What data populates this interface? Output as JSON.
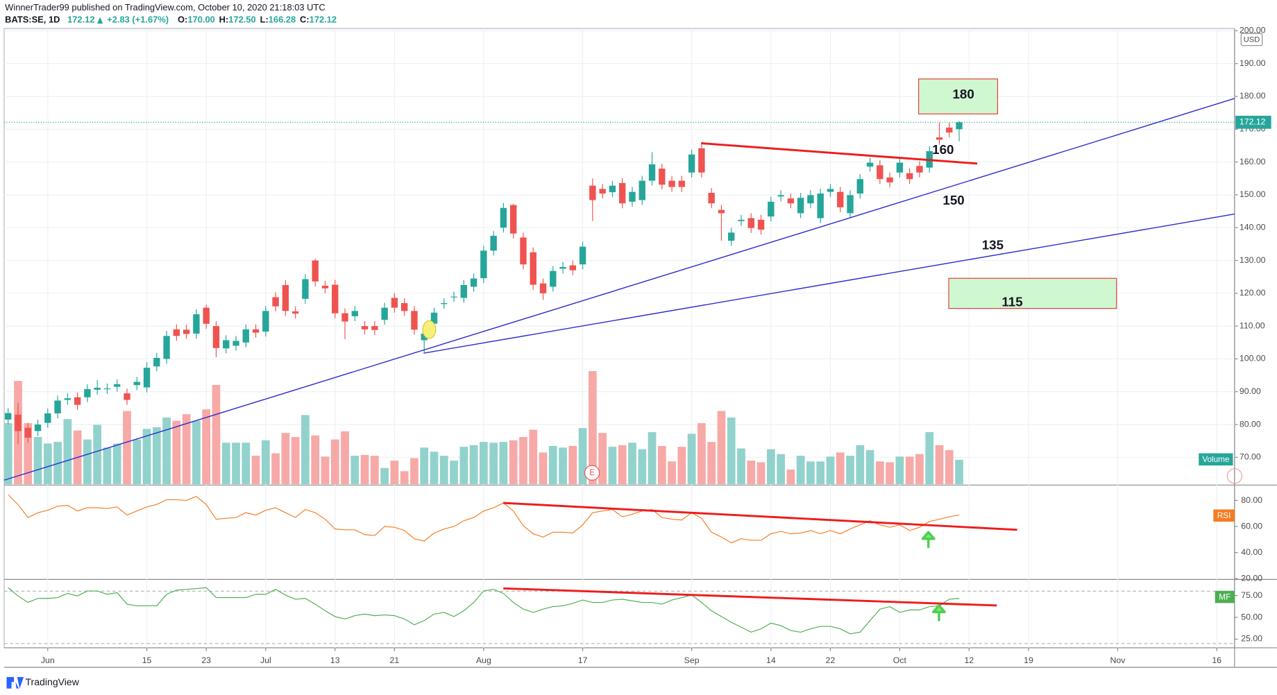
{
  "header": {
    "publisher": "WinnerTrader99 published on TradingView.com, October 10, 2020 21:18:03 UTC",
    "symbol": "BATS:SE, 1D",
    "change": "+2.83 (+1.67%)",
    "ohlc": [
      {
        "label": "O:",
        "value": "170.00"
      },
      {
        "label": "H:",
        "value": "172.50"
      },
      {
        "label": "L:",
        "value": "166.28"
      },
      {
        "label": "C:",
        "value": "172.12"
      }
    ],
    "currency": "USD",
    "footer": "TradingView"
  },
  "chart_data": {
    "type": "candlestick",
    "xlim": [
      -0.4,
      123.8
    ],
    "xticks": [
      {
        "value": 4,
        "label": "Jun"
      },
      {
        "value": 14,
        "label": "15"
      },
      {
        "value": 20,
        "label": "23"
      },
      {
        "value": 26,
        "label": "Jul"
      },
      {
        "value": 33,
        "label": "13"
      },
      {
        "value": 39,
        "label": "21"
      },
      {
        "value": 48,
        "label": "Aug"
      },
      {
        "value": 58,
        "label": "17"
      },
      {
        "value": 69,
        "label": "Sep"
      },
      {
        "value": 77,
        "label": "14"
      },
      {
        "value": 83,
        "label": "22"
      },
      {
        "value": 90,
        "label": "Oct"
      },
      {
        "value": 97,
        "label": "12"
      },
      {
        "value": 103,
        "label": "19"
      },
      {
        "value": 112,
        "label": "Nov"
      },
      {
        "value": 122,
        "label": "16"
      }
    ],
    "ylim": [
      61.8,
      200.7
    ],
    "yticks": [
      {
        "value": 200,
        "label": "200.00"
      },
      {
        "value": 190,
        "label": "190.00"
      },
      {
        "value": 180,
        "label": "180.00"
      },
      {
        "value": 170,
        "label": "170.00"
      },
      {
        "value": 160,
        "label": "160.00"
      },
      {
        "value": 150,
        "label": "150.00"
      },
      {
        "value": 140,
        "label": "140.00"
      },
      {
        "value": 130,
        "label": "130.00"
      },
      {
        "value": 120,
        "label": "120.00"
      },
      {
        "value": 110,
        "label": "110.00"
      },
      {
        "value": 100,
        "label": "100.00"
      },
      {
        "value": 90,
        "label": "90.00"
      },
      {
        "value": 80,
        "label": "80.00"
      },
      {
        "value": 70,
        "label": "70.00"
      }
    ],
    "grid": true,
    "up_color": "#26a69a",
    "down_color": "#ef5350",
    "open": [
      81.5,
      83,
      79,
      78,
      80.5,
      83.4,
      87.5,
      88.3,
      88.3,
      90.6,
      90.8,
      91.5,
      89.5,
      92,
      91.3,
      97.7,
      100,
      109,
      108.9,
      107.7,
      115.6,
      110,
      103.2,
      104,
      105,
      109,
      108.3,
      118.8,
      122.5,
      114.5,
      118.3,
      130,
      122.3,
      122.6,
      113.9,
      113,
      110,
      110,
      111.9,
      118.6,
      117,
      114.6,
      105.7,
      110.7,
      116.7,
      118.8,
      118.6,
      122,
      124.6,
      133,
      140,
      146.9,
      137,
      132.5,
      123,
      122,
      127.5,
      128.5,
      128.8,
      152.8,
      151.8,
      150.8,
      153.6,
      147.9,
      148.4,
      154.3,
      158,
      154.3,
      154.3,
      156.8,
      164.2,
      150.6,
      145.4,
      136,
      142,
      142.9,
      142.4,
      143.4,
      149.5,
      148.9,
      144.4,
      147.4,
      142.9,
      150.9,
      150.9,
      144.4,
      150.4,
      158.6,
      159,
      155.3,
      156.8,
      156.6,
      158.8,
      158.3,
      167.5,
      170.5,
      170
    ],
    "high": [
      85,
      86.6,
      80.5,
      81.5,
      84.9,
      88.8,
      89.5,
      89.8,
      92.3,
      93.5,
      92.5,
      93.8,
      91,
      94.5,
      99,
      101.8,
      108.5,
      110.5,
      110.4,
      115.1,
      116.5,
      111.5,
      107.2,
      107,
      110.5,
      110.5,
      116.1,
      120.3,
      124,
      116,
      125.8,
      130.5,
      123.8,
      124.1,
      115.4,
      116.1,
      111.5,
      111.5,
      117.1,
      120.1,
      118.5,
      116.1,
      109.2,
      115.6,
      118.5,
      120.5,
      124,
      126,
      134.5,
      139,
      147.5,
      147.3,
      138.5,
      134,
      124.5,
      128.3,
      129.5,
      130,
      135.7,
      155,
      153.3,
      154.3,
      155.1,
      152.4,
      155.8,
      163,
      159.5,
      155.8,
      155.8,
      163.8,
      166,
      152.1,
      146.9,
      140,
      143.9,
      144.4,
      143.9,
      149.4,
      151.4,
      150.4,
      150.6,
      151.4,
      151.9,
      153.3,
      152.4,
      151.4,
      156.3,
      161.3,
      160.5,
      156.8,
      161.3,
      158.1,
      160.3,
      164.8,
      172,
      172,
      172.5
    ],
    "low": [
      80,
      74,
      74.5,
      76.5,
      79,
      81.9,
      86,
      84.5,
      86.8,
      89.1,
      89.3,
      90,
      86,
      90.5,
      89.8,
      96.2,
      98.5,
      105.5,
      106.1,
      106.2,
      109.2,
      100.5,
      101.7,
      102.5,
      103.5,
      106.5,
      106.8,
      114.5,
      113.1,
      112.3,
      116.8,
      122.1,
      120,
      112.4,
      106,
      111.5,
      107.5,
      107.3,
      110.4,
      114.1,
      113.1,
      107.4,
      102,
      109.2,
      115.2,
      117.3,
      117.1,
      120.5,
      123.1,
      131.5,
      138.5,
      136.7,
      127.3,
      121.1,
      118,
      120.5,
      126,
      125.5,
      127.3,
      142,
      148.9,
      149.3,
      145.9,
      146.4,
      146.9,
      152.8,
      151.6,
      150.9,
      150.9,
      155.3,
      155.3,
      145.9,
      136,
      134.5,
      140.5,
      138.4,
      137.9,
      141.9,
      148,
      145.9,
      142.9,
      145.9,
      141.4,
      149.4,
      144.7,
      142.9,
      148.9,
      157.1,
      153.3,
      152.3,
      155.3,
      153.3,
      155.3,
      156.8,
      165.3,
      167.5,
      166.28
    ],
    "close": [
      83.5,
      78,
      76,
      80,
      83.4,
      87.3,
      88,
      86,
      90.8,
      91.2,
      91,
      92.3,
      87.5,
      93,
      97.3,
      100.3,
      107,
      107,
      107.6,
      113.6,
      110.7,
      103.3,
      105.7,
      105.5,
      109,
      108,
      114.6,
      116,
      114.6,
      113.8,
      124.3,
      123.6,
      121.5,
      113.9,
      111.4,
      114.6,
      109,
      108.8,
      115.6,
      115.6,
      114.6,
      108.9,
      107.7,
      114.1,
      117,
      119,
      122.5,
      124.5,
      133,
      137.5,
      146,
      138.2,
      128.8,
      122.6,
      120,
      126.8,
      128,
      127,
      134.2,
      148.4,
      150.4,
      152.8,
      147.4,
      150.9,
      154.3,
      159.3,
      153.1,
      152.4,
      152.4,
      162.3,
      156.8,
      147.4,
      144.4,
      138.5,
      142.4,
      139.9,
      139.4,
      147.9,
      149.9,
      147.4,
      149.1,
      149.9,
      150.4,
      151.8,
      146.2,
      149.9,
      154.8,
      159.8,
      154.8,
      153.8,
      159.8,
      154.8,
      156.8,
      163.3,
      166.8,
      169,
      172.12
    ],
    "volume": {
      "name": "Volume",
      "vlim": [
        0,
        56
      ],
      "up_color": "#92d2cc",
      "down_color": "#f7a9a7",
      "values": [
        7.5,
        12.7,
        7.5,
        5.8,
        5.0,
        5.2,
        8.0,
        6.6,
        5.5,
        7.3,
        4.5,
        5.0,
        9.0,
        5.5,
        6.8,
        7.0,
        8.2,
        7.8,
        8.6,
        7.8,
        9.2,
        12.2,
        5.1,
        5.1,
        5.1,
        3.5,
        5.4,
        3.8,
        6.3,
        5.8,
        8.5,
        6.0,
        3.4,
        5.5,
        6.5,
        3.5,
        3.6,
        3.5,
        2.0,
        2.9,
        1.6,
        3.2,
        4.5,
        4.0,
        3.5,
        2.9,
        4.6,
        4.8,
        5.2,
        5.1,
        5.2,
        5.4,
        5.8,
        6.7,
        3.9,
        4.7,
        4.5,
        4.7,
        6.9,
        13.9,
        6.3,
        4.6,
        4.8,
        5.1,
        4.3,
        6.4,
        4.7,
        2.8,
        4.6,
        6.2,
        7.5,
        5.2,
        9.0,
        8.2,
        4.4,
        2.9,
        2.7,
        4.3,
        3.7,
        1.8,
        3.5,
        2.8,
        2.8,
        3.4,
        3.9,
        3.5,
        4.8,
        4.2,
        2.8,
        2.7,
        3.4,
        3.4,
        3.7,
        6.4,
        4.8,
        4.2,
        3.0
      ]
    },
    "rsi": {
      "name": "RSI",
      "color": "#f57c20",
      "ylim": [
        19.4,
        91.2
      ],
      "yticks": [
        {
          "value": 80,
          "label": "80.00"
        },
        {
          "value": 60,
          "label": "60.00"
        },
        {
          "value": 40,
          "label": "40.00"
        },
        {
          "value": 20,
          "label": "20.00"
        }
      ],
      "values": [
        84.4,
        76.9,
        66.9,
        70.6,
        72.5,
        75.6,
        76.3,
        71.9,
        74.4,
        74.4,
        73.8,
        75.0,
        68.8,
        71.9,
        75.0,
        76.9,
        80.6,
        80.6,
        80.0,
        83.1,
        76.9,
        65.6,
        66.3,
        66.9,
        70.6,
        68.8,
        72.5,
        74.4,
        70.6,
        66.9,
        73.1,
        70.6,
        65.6,
        58.1,
        57.5,
        57.5,
        53.8,
        53.1,
        60.0,
        59.4,
        56.9,
        50.6,
        48.8,
        55.0,
        58.1,
        60.0,
        64.4,
        66.9,
        71.9,
        74.4,
        78.1,
        71.9,
        60.6,
        54.4,
        51.9,
        55.6,
        55.6,
        55.0,
        61.3,
        70.6,
        71.9,
        73.1,
        67.5,
        69.4,
        71.9,
        73.1,
        66.9,
        65.6,
        65.0,
        70.6,
        66.3,
        55.6,
        51.9,
        47.5,
        50.6,
        49.4,
        49.4,
        54.4,
        56.3,
        54.4,
        55.0,
        56.9,
        54.4,
        56.9,
        54.4,
        58.1,
        61.3,
        64.4,
        61.3,
        59.4,
        61.3,
        56.9,
        59.4,
        63.8,
        65.6,
        67.5,
        68.8
      ]
    },
    "mf": {
      "name": "MF",
      "color": "#4caf50",
      "ylim": [
        15.1,
        92.5
      ],
      "levels": [
        80,
        20
      ],
      "yticks": [
        {
          "value": 75,
          "label": "75.00"
        },
        {
          "value": 50,
          "label": "50.00"
        },
        {
          "value": 25,
          "label": "25.00"
        }
      ],
      "values": [
        84.0,
        74.5,
        67.0,
        71.7,
        71.7,
        72.6,
        77.4,
        74.5,
        80.2,
        80.2,
        76.4,
        78.3,
        65.1,
        63.2,
        63.2,
        63.2,
        76.4,
        81.1,
        82.1,
        83.0,
        84.0,
        72.6,
        72.6,
        72.6,
        72.6,
        76.4,
        76.4,
        82.1,
        75.5,
        70.8,
        71.7,
        65.1,
        57.5,
        50.9,
        48.1,
        51.9,
        53.8,
        51.9,
        52.8,
        51.9,
        48.1,
        41.5,
        46.2,
        53.8,
        55.7,
        50.9,
        57.5,
        67.0,
        80.2,
        82.1,
        77.4,
        67.0,
        59.4,
        55.7,
        59.4,
        62.3,
        63.2,
        66.0,
        69.8,
        67.0,
        67.0,
        69.8,
        70.8,
        68.9,
        67.0,
        67.0,
        65.1,
        69.8,
        72.6,
        75.5,
        67.0,
        57.5,
        50.9,
        44.3,
        38.7,
        33.0,
        36.8,
        43.4,
        40.6,
        34.9,
        33.0,
        36.8,
        39.6,
        39.6,
        36.8,
        31.1,
        33.0,
        46.2,
        59.4,
        62.3,
        55.7,
        58.5,
        58.5,
        62.3,
        63.2,
        70.8,
        71.7
      ]
    },
    "annotations": [
      "180",
      "160",
      "150",
      "135",
      "115"
    ],
    "event": "E"
  }
}
